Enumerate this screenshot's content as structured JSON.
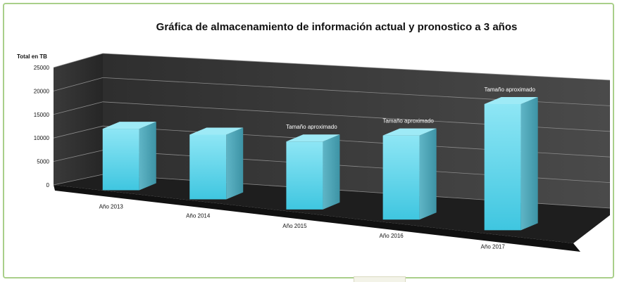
{
  "chart_data": {
    "type": "bar",
    "title": "Gráfica de almacenamiento de información actual y pronostico a 3 años",
    "ylabel": "Total en TB",
    "xlabel": "",
    "ylim": [
      0,
      25000
    ],
    "yticks": [
      0,
      5000,
      10000,
      15000,
      20000,
      25000
    ],
    "categories": [
      "Año 2013",
      "Año 2014",
      "Año 2015",
      "Año 2016",
      "Año 2017"
    ],
    "values": [
      9500,
      10000,
      10500,
      13000,
      19500
    ],
    "annotations": [
      "",
      "",
      "Tamaño aproximado",
      "Tamaño aproximado",
      "Tamaño aproximado"
    ],
    "bar_color": "#5fd3ea",
    "background_color": "#3a3a3a",
    "grid": true
  }
}
